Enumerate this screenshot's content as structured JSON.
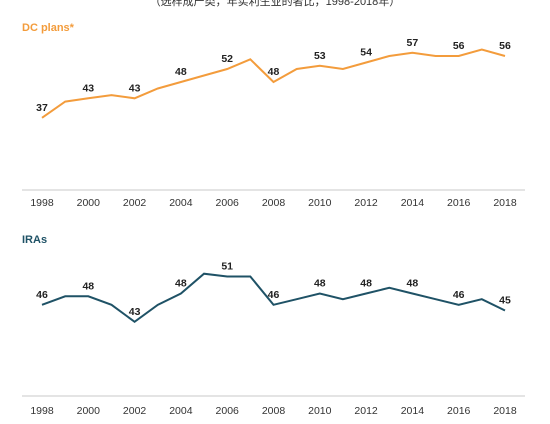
{
  "caption": "（选样成产类，年实利生业的者比，1998-2018年）",
  "chart_data": [
    {
      "type": "line",
      "title": "DC plans*",
      "color": "#F39C3C",
      "x": [
        1998,
        1999,
        2000,
        2001,
        2002,
        2003,
        2004,
        2005,
        2006,
        2007,
        2008,
        2009,
        2010,
        2011,
        2012,
        2013,
        2014,
        2015,
        2016,
        2017,
        2018
      ],
      "values": [
        37,
        42,
        43,
        44,
        43,
        46,
        48,
        50,
        52,
        55,
        48,
        52,
        53,
        52,
        54,
        56,
        57,
        56,
        56,
        58,
        56
      ],
      "labels": [
        {
          "x": 1998,
          "text": "37"
        },
        {
          "x": 2000,
          "text": "43"
        },
        {
          "x": 2002,
          "text": "43"
        },
        {
          "x": 2004,
          "text": "48"
        },
        {
          "x": 2006,
          "text": "52"
        },
        {
          "x": 2008,
          "text": "48"
        },
        {
          "x": 2010,
          "text": "53"
        },
        {
          "x": 2012,
          "text": "54"
        },
        {
          "x": 2014,
          "text": "57"
        },
        {
          "x": 2016,
          "text": "56"
        },
        {
          "x": 2018,
          "text": "56"
        }
      ],
      "xticks": [
        "1998",
        "2000",
        "2002",
        "2004",
        "2006",
        "2008",
        "2010",
        "2012",
        "2014",
        "2016",
        "2018"
      ],
      "ylim": [
        30,
        60
      ],
      "grid": false
    },
    {
      "type": "line",
      "title": "IRAs",
      "color": "#1F5266",
      "x": [
        1998,
        1999,
        2000,
        2001,
        2002,
        2003,
        2004,
        2005,
        2006,
        2007,
        2008,
        2009,
        2010,
        2011,
        2012,
        2013,
        2014,
        2015,
        2016,
        2017,
        2018
      ],
      "values": [
        46,
        47.5,
        47.5,
        46,
        43,
        46,
        48,
        51.5,
        51,
        51,
        46,
        47,
        48,
        47,
        48,
        49,
        48,
        47,
        46,
        47,
        45
      ],
      "labels": [
        {
          "x": 1998,
          "text": "46"
        },
        {
          "x": 2000,
          "text": "48"
        },
        {
          "x": 2002,
          "text": "43"
        },
        {
          "x": 2004,
          "text": "48"
        },
        {
          "x": 2006,
          "text": "51"
        },
        {
          "x": 2008,
          "text": "46"
        },
        {
          "x": 2010,
          "text": "48"
        },
        {
          "x": 2012,
          "text": "48"
        },
        {
          "x": 2014,
          "text": "48"
        },
        {
          "x": 2016,
          "text": "46"
        },
        {
          "x": 2018,
          "text": "45"
        }
      ],
      "xticks": [
        "1998",
        "2000",
        "2002",
        "2004",
        "2006",
        "2008",
        "2010",
        "2012",
        "2014",
        "2016",
        "2018"
      ],
      "ylim": [
        30,
        60
      ],
      "grid": false
    }
  ]
}
